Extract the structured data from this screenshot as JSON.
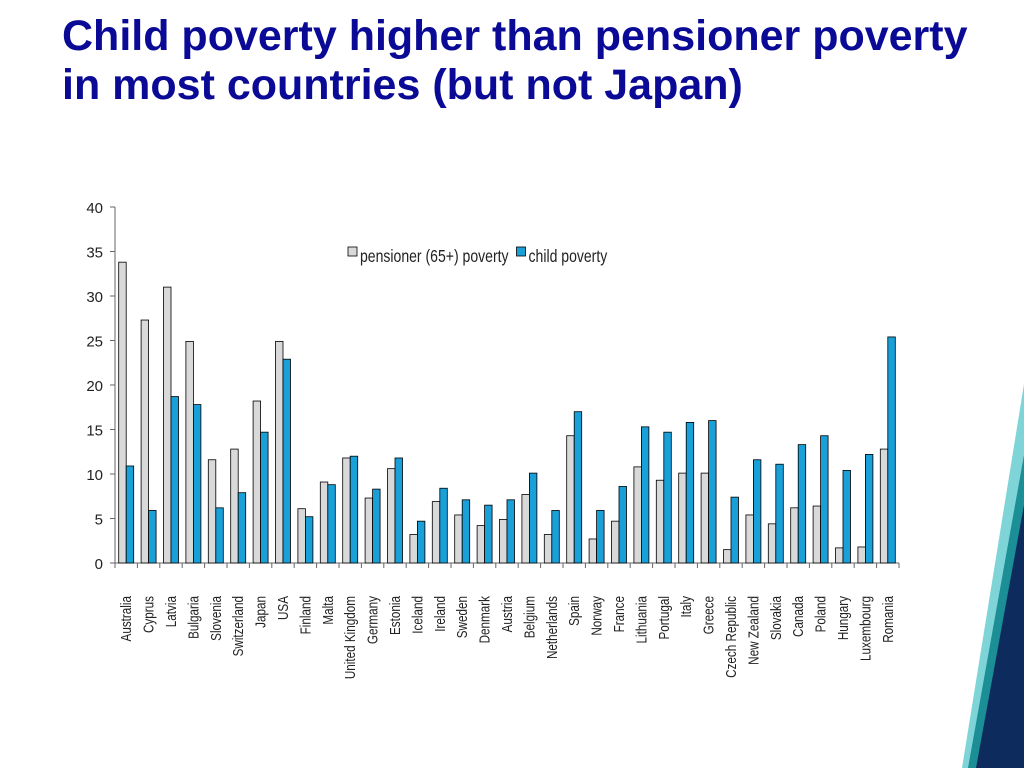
{
  "slide": {
    "title": "Child poverty higher than pensioner poverty in most countries (but not Japan)"
  },
  "colors": {
    "title": "#0a0a96",
    "pensioner_bar": "#d9d9d9",
    "child_bar": "#1aa0d8",
    "bar_outline": "#000000",
    "decor_dark": "#0d2b5c",
    "decor_teal": "#1b8e96",
    "decor_light": "#7fd4d8"
  },
  "chart_data": {
    "type": "bar",
    "title": "",
    "xlabel": "",
    "ylabel": "",
    "ylim": [
      0,
      40
    ],
    "yticks": [
      0,
      5,
      10,
      15,
      20,
      25,
      30,
      35,
      40
    ],
    "legend_position": "top-center",
    "grid": false,
    "categories": [
      "Australia",
      "Cyprus",
      "Latvia",
      "Bulgaria",
      "Slovenia",
      "Switzerland",
      "Japan",
      "USA",
      "Finland",
      "Malta",
      "United Kingdom",
      "Germany",
      "Estonia",
      "Iceland",
      "Ireland",
      "Sweden",
      "Denmark",
      "Austria",
      "Belgium",
      "Netherlands",
      "Spain",
      "Norway",
      "France",
      "Lithuania",
      "Portugal",
      "Italy",
      "Greece",
      "Czech Republic",
      "New Zealand",
      "Slovakia",
      "Canada",
      "Poland",
      "Hungary",
      "Luxembourg",
      "Romania"
    ],
    "series": [
      {
        "name": "pensioner (65+) poverty",
        "values": [
          33.8,
          27.3,
          31.0,
          24.9,
          11.6,
          12.8,
          18.2,
          24.9,
          6.1,
          9.1,
          11.8,
          7.3,
          10.6,
          3.2,
          6.9,
          5.4,
          4.2,
          4.9,
          7.7,
          3.2,
          14.3,
          2.7,
          4.7,
          10.8,
          9.3,
          10.1,
          10.1,
          1.5,
          5.4,
          4.4,
          6.2,
          6.4,
          1.7,
          1.8,
          12.8
        ]
      },
      {
        "name": "child poverty",
        "values": [
          10.9,
          5.9,
          18.7,
          17.8,
          6.2,
          7.9,
          14.7,
          22.9,
          5.2,
          8.8,
          12.0,
          8.3,
          11.8,
          4.7,
          8.4,
          7.1,
          6.5,
          7.1,
          10.1,
          5.9,
          17.0,
          5.9,
          8.6,
          15.3,
          14.7,
          15.8,
          16.0,
          7.4,
          11.6,
          11.1,
          13.3,
          14.3,
          10.4,
          12.2,
          25.4
        ]
      }
    ]
  }
}
